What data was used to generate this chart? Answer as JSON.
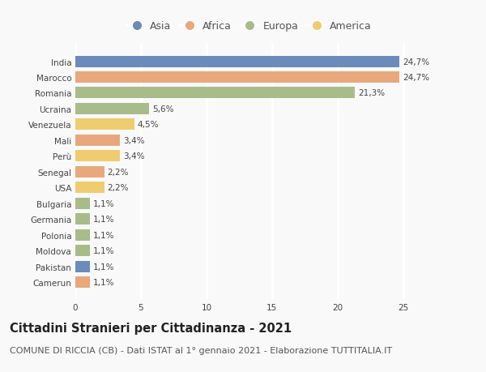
{
  "countries": [
    "India",
    "Marocco",
    "Romania",
    "Ucraina",
    "Venezuela",
    "Mali",
    "Perù",
    "Senegal",
    "USA",
    "Bulgaria",
    "Germania",
    "Polonia",
    "Moldova",
    "Pakistan",
    "Camerun"
  ],
  "values": [
    24.7,
    24.7,
    21.3,
    5.6,
    4.5,
    3.4,
    3.4,
    2.2,
    2.2,
    1.1,
    1.1,
    1.1,
    1.1,
    1.1,
    1.1
  ],
  "labels": [
    "24,7%",
    "24,7%",
    "21,3%",
    "5,6%",
    "4,5%",
    "3,4%",
    "3,4%",
    "2,2%",
    "2,2%",
    "1,1%",
    "1,1%",
    "1,1%",
    "1,1%",
    "1,1%",
    "1,1%"
  ],
  "continents": [
    "Asia",
    "Africa",
    "Europa",
    "Europa",
    "America",
    "Africa",
    "America",
    "Africa",
    "America",
    "Europa",
    "Europa",
    "Europa",
    "Europa",
    "Asia",
    "Africa"
  ],
  "continent_colors": {
    "Asia": "#6b8cba",
    "Africa": "#e8a87c",
    "Europa": "#a8bc8a",
    "America": "#f0cc70"
  },
  "legend_order": [
    "Asia",
    "Africa",
    "Europa",
    "America"
  ],
  "title": "Cittadini Stranieri per Cittadinanza - 2021",
  "subtitle": "COMUNE DI RICCIA (CB) - Dati ISTAT al 1° gennaio 2021 - Elaborazione TUTTITALIA.IT",
  "xlim": [
    0,
    26.5
  ],
  "xticks": [
    0,
    5,
    10,
    15,
    20,
    25
  ],
  "background_color": "#f9f9f9",
  "grid_color": "#ffffff",
  "title_fontsize": 10.5,
  "subtitle_fontsize": 8,
  "label_fontsize": 7.5,
  "tick_fontsize": 7.5,
  "legend_fontsize": 9
}
